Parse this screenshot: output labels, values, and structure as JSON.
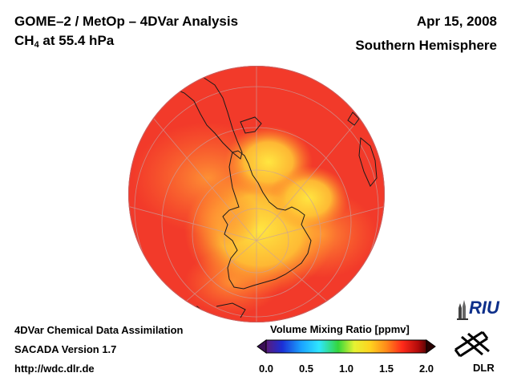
{
  "header": {
    "title_line1": "GOME–2 / MetOp – 4DVar Analysis",
    "title_line2_main": "CH",
    "title_line2_sub": "4",
    "title_line2_rest": " at 55.4 hPa",
    "date": "Apr 15, 2008",
    "region": "Southern Hemisphere"
  },
  "footer": {
    "line1": "4DVar Chemical Data Assimilation",
    "line2": "SACADA Version 1.7",
    "line3": "http://wdc.dlr.de"
  },
  "colorbar": {
    "title": "Volume Mixing Ratio [ppmv]",
    "ticks": [
      "0.0",
      "0.5",
      "1.0",
      "1.5",
      "2.0"
    ],
    "colors": [
      "#5b1a7a",
      "#1b2fd6",
      "#1aa3ff",
      "#2fe6ff",
      "#35d63a",
      "#e6f233",
      "#ffd21f",
      "#ff8a1a",
      "#ff2a1a",
      "#b00a0a",
      "#5a0505"
    ]
  },
  "logos": {
    "riu": "RIU",
    "dlr": "DLR"
  },
  "map": {
    "projection": "orthographic-south-polar",
    "field_colors": {
      "high": "#f23a2a",
      "mid": "#ff8a2a",
      "low": "#ffe640"
    },
    "icons": [
      "globe-icon"
    ]
  }
}
